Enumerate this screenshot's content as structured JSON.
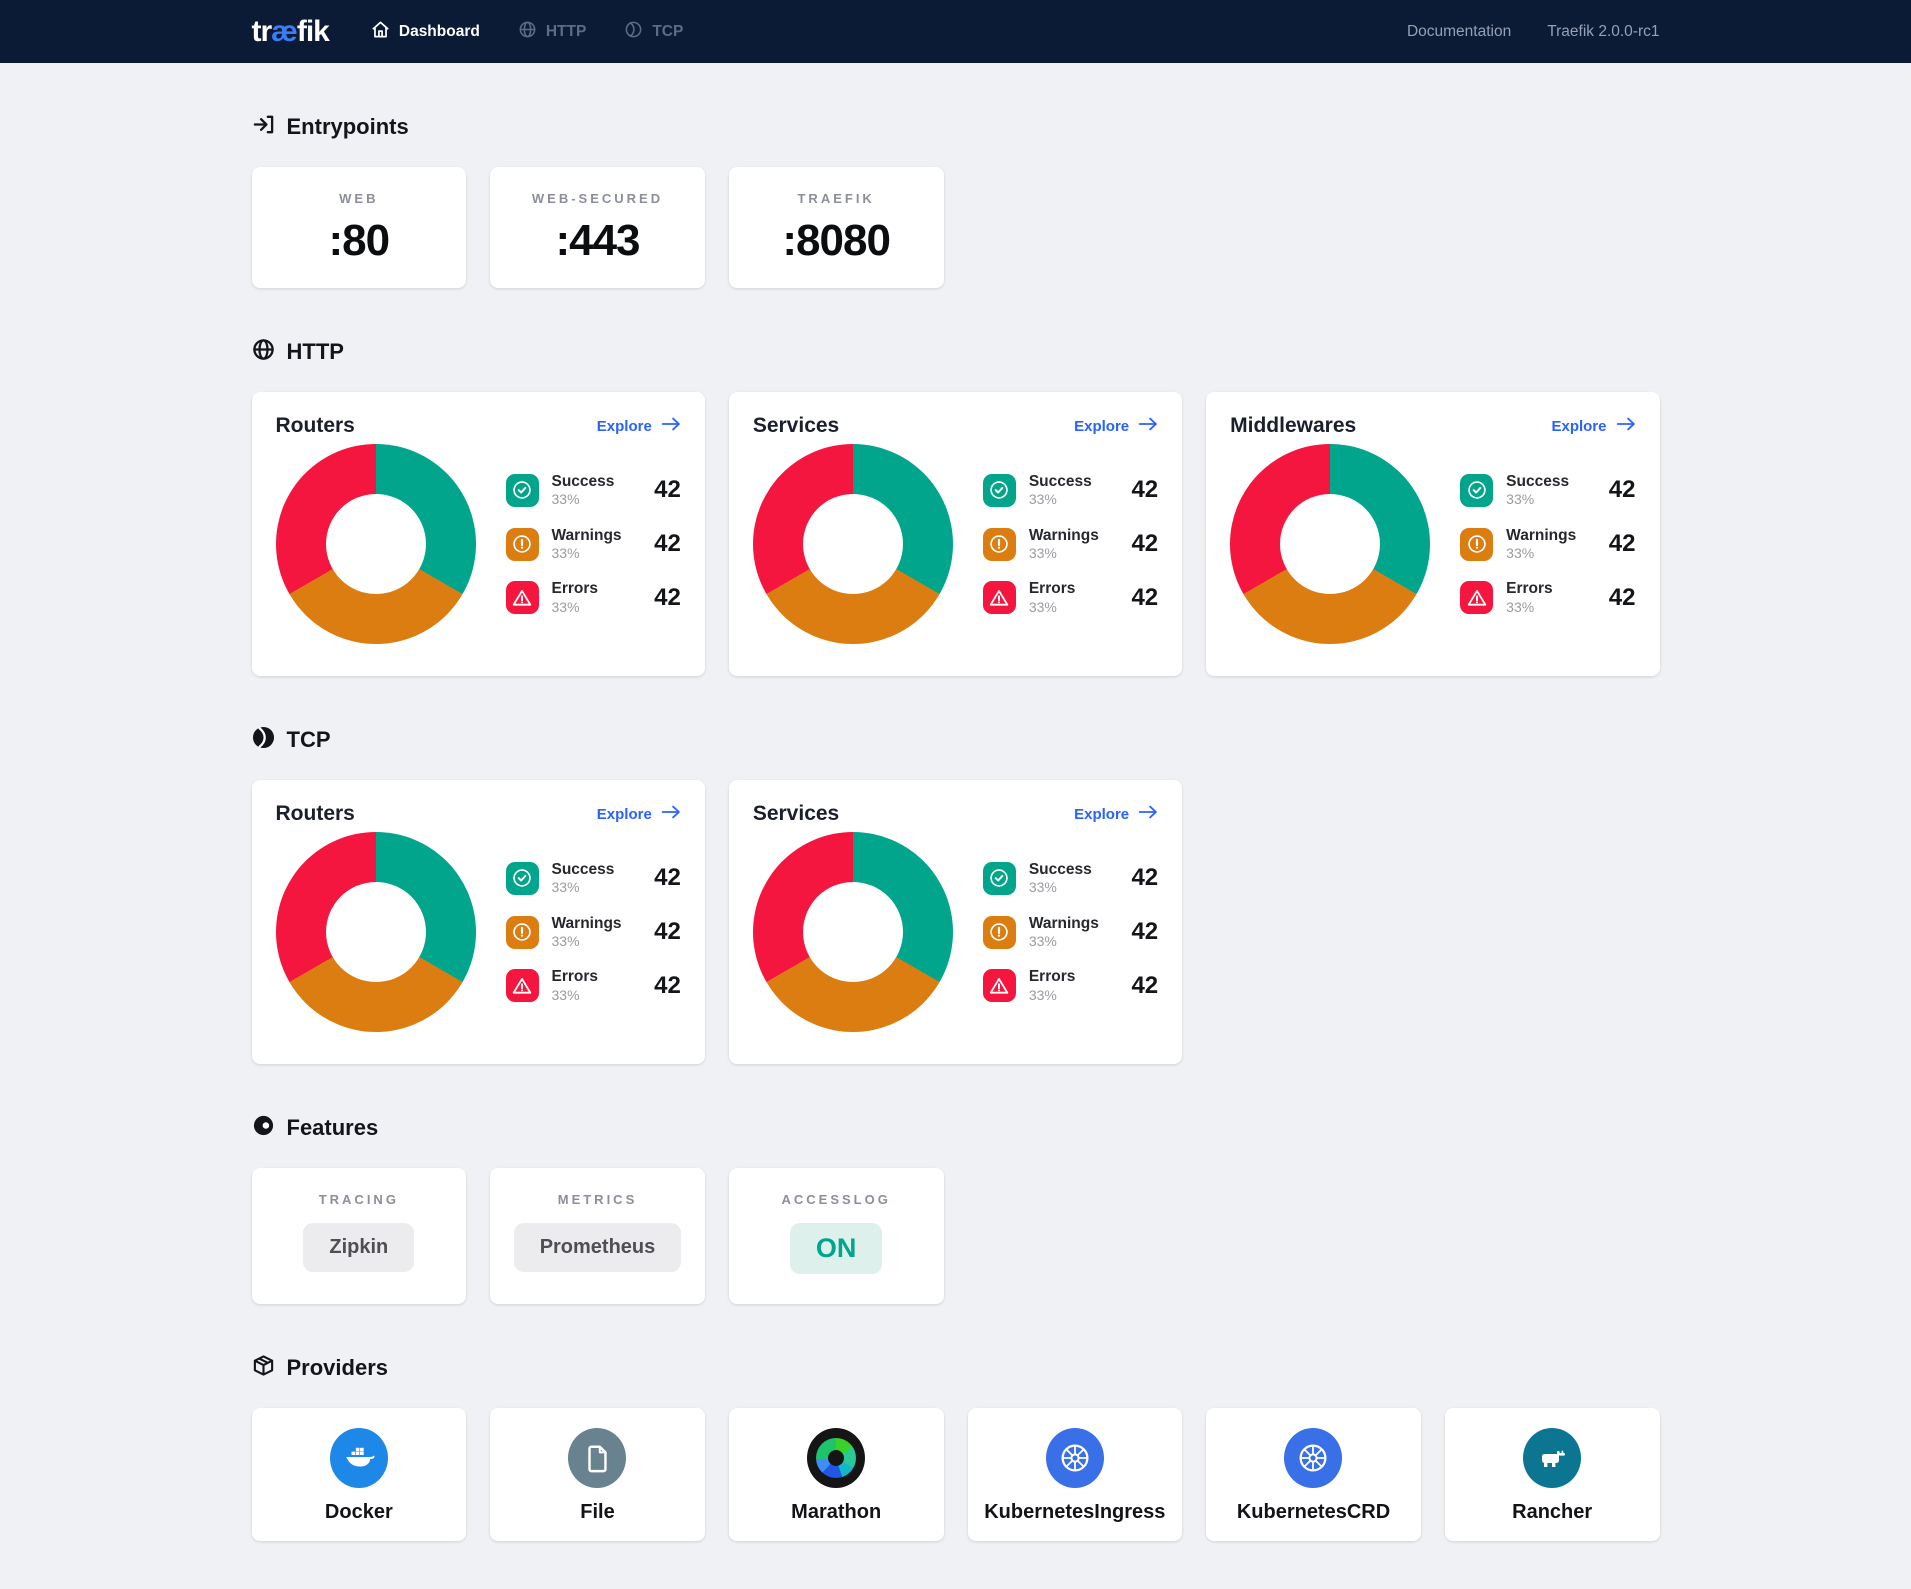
{
  "navbar": {
    "logo_prefix": "tr",
    "logo_ae": "æ",
    "logo_suffix": "fik",
    "items": [
      {
        "label": "Dashboard",
        "icon": "home-icon",
        "active": true
      },
      {
        "label": "HTTP",
        "icon": "globe-icon",
        "active": false
      },
      {
        "label": "TCP",
        "icon": "tcp-ball-icon",
        "active": false
      }
    ],
    "documentation": "Documentation",
    "version": "Traefik 2.0.0-rc1"
  },
  "sections": {
    "entrypoints": {
      "title": "Entrypoints",
      "cards": [
        {
          "label": "WEB",
          "value": ":80"
        },
        {
          "label": "WEB-SECURED",
          "value": ":443"
        },
        {
          "label": "TRAEFIK",
          "value": ":8080"
        }
      ]
    },
    "http": {
      "title": "HTTP",
      "cards": [
        {
          "title": "Routers"
        },
        {
          "title": "Services"
        },
        {
          "title": "Middlewares"
        }
      ]
    },
    "tcp": {
      "title": "TCP",
      "cards": [
        {
          "title": "Routers"
        },
        {
          "title": "Services"
        }
      ]
    },
    "features": {
      "title": "Features",
      "cards": [
        {
          "label": "TRACING",
          "value": "Zipkin",
          "variant": "neutral"
        },
        {
          "label": "METRICS",
          "value": "Prometheus",
          "variant": "neutral"
        },
        {
          "label": "ACCESSLOG",
          "value": "ON",
          "variant": "on"
        }
      ]
    },
    "providers": {
      "title": "Providers",
      "items": [
        {
          "name": "Docker",
          "icon": "docker",
          "color": "#1d88e8"
        },
        {
          "name": "File",
          "icon": "file",
          "color": "#68828f"
        },
        {
          "name": "Marathon",
          "icon": "marathon",
          "color": "#151515"
        },
        {
          "name": "KubernetesIngress",
          "icon": "kubernetes",
          "color": "#3970e8"
        },
        {
          "name": "KubernetesCRD",
          "icon": "kubernetes",
          "color": "#3970e8"
        },
        {
          "name": "Rancher",
          "icon": "rancher",
          "color": "#0c7591"
        }
      ]
    }
  },
  "chart_data": {
    "type": "pie",
    "donut": true,
    "legend_position": "right",
    "explore_label": "Explore",
    "instances": [
      "HTTP Routers",
      "HTTP Services",
      "HTTP Middlewares",
      "TCP Routers",
      "TCP Services"
    ],
    "categories": [
      "Success",
      "Warnings",
      "Errors"
    ],
    "values": [
      42,
      42,
      42
    ],
    "percent_labels": [
      "33%",
      "33%",
      "33%"
    ],
    "colors": [
      "#00a58c",
      "#db7d11",
      "#f5163f"
    ],
    "icon_types": [
      "check-circle",
      "exclaim-circle",
      "warning-triangle"
    ]
  }
}
